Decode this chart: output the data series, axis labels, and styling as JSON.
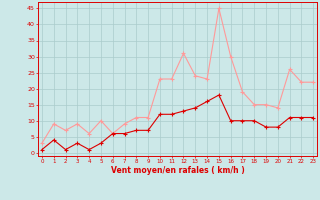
{
  "hours": [
    0,
    1,
    2,
    3,
    4,
    5,
    6,
    7,
    8,
    9,
    10,
    11,
    12,
    13,
    14,
    15,
    16,
    17,
    18,
    19,
    20,
    21,
    22,
    23
  ],
  "wind_avg": [
    1,
    4,
    1,
    3,
    1,
    3,
    6,
    6,
    7,
    7,
    12,
    12,
    13,
    14,
    16,
    18,
    10,
    10,
    10,
    8,
    8,
    11,
    11,
    11
  ],
  "wind_gust": [
    3,
    9,
    7,
    9,
    6,
    10,
    6,
    9,
    11,
    11,
    23,
    23,
    31,
    24,
    23,
    45,
    30,
    19,
    15,
    15,
    14,
    26,
    22,
    22
  ],
  "avg_color": "#dd0000",
  "gust_color": "#ff9999",
  "bg_color": "#cce8e8",
  "grid_color": "#aacccc",
  "xlabel": "Vent moyen/en rafales ( km/h )",
  "xlabel_color": "#dd0000",
  "yticks": [
    0,
    5,
    10,
    15,
    20,
    25,
    30,
    35,
    40,
    45
  ],
  "ylim": [
    -1,
    47
  ],
  "xlim": [
    -0.3,
    23.3
  ]
}
